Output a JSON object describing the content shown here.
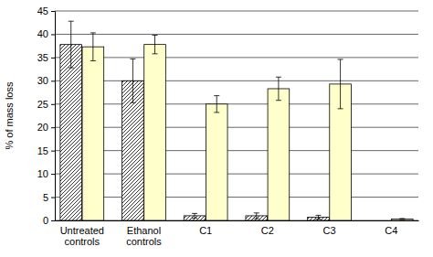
{
  "chart_data": {
    "type": "bar",
    "y_label": "% of mass loss",
    "categories": [
      "Untreated controls",
      "Ethanol controls",
      "C1",
      "C2",
      "C3",
      "C4"
    ],
    "series": [
      {
        "color": "#333333",
        "marker": "hatch",
        "values": [
          37.8,
          30,
          1,
          1,
          0.7,
          null
        ],
        "errors": [
          5,
          4.7,
          0.5,
          0.6,
          0.4,
          null
        ]
      },
      {
        "color": "#ffffcc",
        "values": [
          37.3,
          37.8,
          25,
          28.3,
          29.3,
          0.3
        ],
        "errors": [
          3,
          2,
          1.8,
          2.5,
          5.3,
          0.1
        ]
      }
    ],
    "ylim": [
      0,
      45
    ],
    "yticks": [
      0,
      5,
      10,
      15,
      20,
      25,
      30,
      35,
      40,
      45
    ],
    "grid": true
  }
}
